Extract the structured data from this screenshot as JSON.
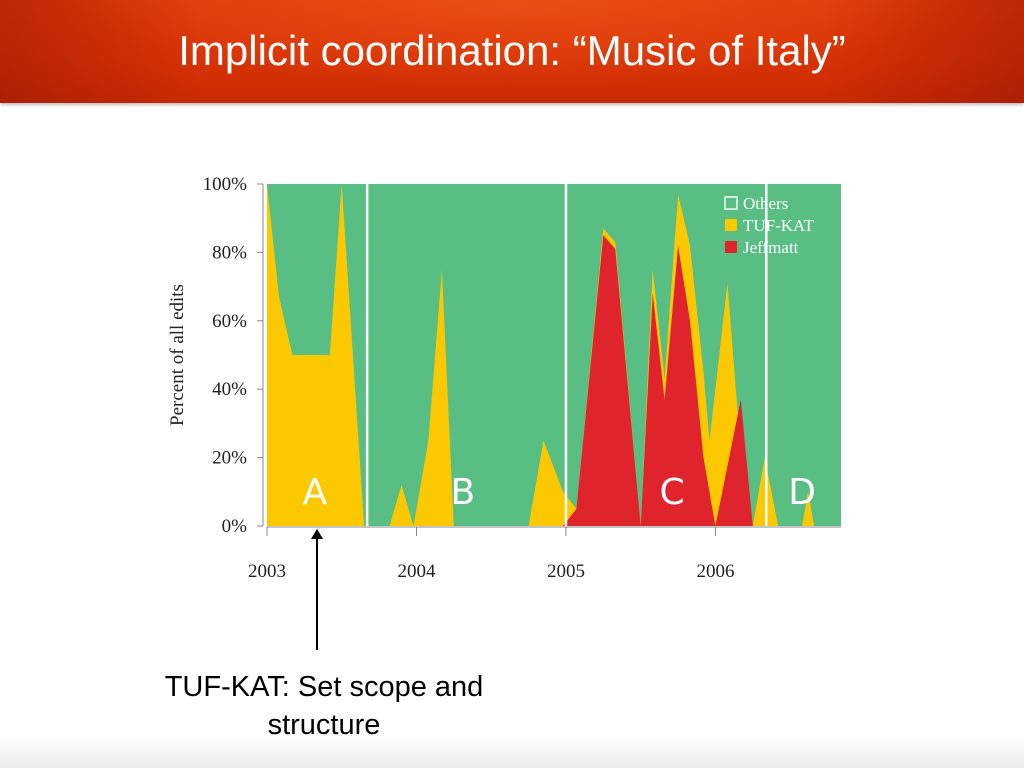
{
  "header": {
    "title": "Implicit coordination: “Music of Italy”"
  },
  "annotation": {
    "caption": "TUF-KAT: Set scope and structure"
  },
  "colors": {
    "others": "#58be83",
    "tuf_kat": "#fcc800",
    "jeffmatt": "#e0242e",
    "header": "#d83206"
  },
  "chart_data": {
    "type": "area",
    "ylabel": "Percent of all edits",
    "y_ticks": [
      "0%",
      "20%",
      "40%",
      "60%",
      "80%",
      "100%"
    ],
    "ylim": [
      0,
      100
    ],
    "x_ticks": [
      "2003",
      "2004",
      "2005",
      "2006"
    ],
    "xlim": [
      2003.0,
      2006.84
    ],
    "legend": [
      "Others",
      "TUF-KAT",
      "Jeffmatt"
    ],
    "legend_position": "top-right",
    "region_labels": [
      "A",
      "B",
      "C",
      "D"
    ],
    "series": [
      {
        "name": "TUF-KAT",
        "values": [
          [
            2003.0,
            100
          ],
          [
            2003.08,
            67
          ],
          [
            2003.17,
            50
          ],
          [
            2003.42,
            50
          ],
          [
            2003.5,
            100
          ],
          [
            2003.65,
            0
          ],
          [
            2003.82,
            0
          ],
          [
            2003.9,
            12
          ],
          [
            2003.98,
            0
          ],
          [
            2004.08,
            25
          ],
          [
            2004.17,
            75
          ],
          [
            2004.25,
            0
          ],
          [
            2004.75,
            0
          ],
          [
            2004.85,
            25
          ],
          [
            2004.98,
            10
          ],
          [
            2005.07,
            5
          ],
          [
            2005.25,
            87
          ],
          [
            2005.33,
            83
          ],
          [
            2005.5,
            0
          ],
          [
            2005.58,
            75
          ],
          [
            2005.66,
            43
          ],
          [
            2005.75,
            97
          ],
          [
            2005.83,
            82
          ],
          [
            2005.92,
            45
          ],
          [
            2005.96,
            25
          ],
          [
            2006.08,
            71
          ],
          [
            2006.17,
            22
          ],
          [
            2006.25,
            0
          ],
          [
            2006.33,
            20
          ],
          [
            2006.42,
            0
          ],
          [
            2006.58,
            0
          ],
          [
            2006.62,
            10
          ],
          [
            2006.66,
            0
          ]
        ]
      },
      {
        "name": "Jeffmatt",
        "values": [
          [
            2004.98,
            0
          ],
          [
            2005.07,
            5
          ],
          [
            2005.25,
            85
          ],
          [
            2005.33,
            81
          ],
          [
            2005.5,
            0
          ],
          [
            2005.58,
            68
          ],
          [
            2005.66,
            37
          ],
          [
            2005.75,
            82
          ],
          [
            2005.83,
            60
          ],
          [
            2005.92,
            20
          ],
          [
            2006.0,
            0
          ],
          [
            2006.17,
            37
          ],
          [
            2006.25,
            0
          ]
        ]
      },
      {
        "name": "Others",
        "values": "remainder to 100%"
      }
    ]
  }
}
